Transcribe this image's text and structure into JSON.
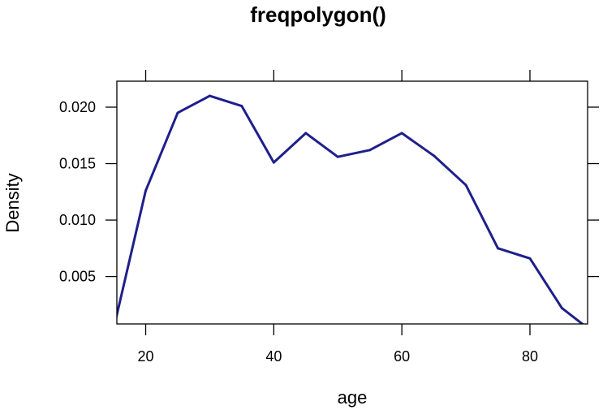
{
  "chart_data": {
    "type": "line",
    "title": "freqpolygon()",
    "xlabel": "age",
    "ylabel": "Density",
    "xlim": [
      15.5,
      89
    ],
    "ylim": [
      0.0008,
      0.0223
    ],
    "x_ticks": [
      20,
      40,
      60,
      80
    ],
    "x_tick_labels": [
      "20",
      "40",
      "60",
      "80"
    ],
    "y_ticks": [
      0.005,
      0.01,
      0.015,
      0.02
    ],
    "y_tick_labels": [
      "0.005",
      "0.010",
      "0.015",
      "0.020"
    ],
    "grid": false,
    "series": [
      {
        "color": "#1f1f8c",
        "x": [
          15,
          20,
          25,
          30,
          35,
          40,
          45,
          50,
          55,
          60,
          65,
          70,
          75,
          80,
          85,
          90
        ],
        "y": [
          0.0004,
          0.0126,
          0.0195,
          0.021,
          0.0201,
          0.0151,
          0.0177,
          0.0156,
          0.0162,
          0.0177,
          0.0157,
          0.0131,
          0.0075,
          0.0066,
          0.0022,
          0.0
        ]
      }
    ]
  }
}
